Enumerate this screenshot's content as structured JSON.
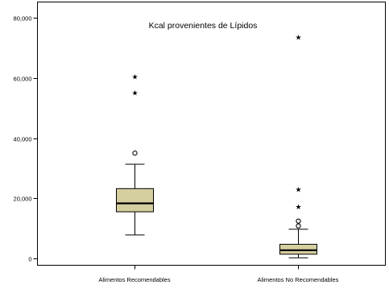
{
  "chart_data": {
    "type": "boxplot",
    "title": "Kcal provenientes de Lípidos",
    "xlabel": "",
    "ylabel": "",
    "ylim": [
      -2000,
      82000
    ],
    "yticks": [
      0,
      20000,
      40000,
      60000,
      80000
    ],
    "ytick_labels": [
      "0",
      "20,000",
      "40,000",
      "60,000",
      "80,000"
    ],
    "grid": false,
    "box_fill": "#D5CFA0",
    "categories": [
      "Alimentos Recomendables",
      "Alimentos No Recomendables"
    ],
    "boxes": [
      {
        "category": "Alimentos Recomendables",
        "whisker_low": 7800,
        "q1": 15500,
        "median": 18300,
        "q3": 23200,
        "whisker_high": 31300,
        "outliers": [
          35000
        ],
        "extremes": [
          55300,
          60600
        ]
      },
      {
        "category": "Alimentos No Recomendables",
        "whisker_low": 200,
        "q1": 1400,
        "median": 2700,
        "q3": 4700,
        "whisker_high": 9700,
        "outliers": [
          10800,
          12400
        ],
        "extremes": [
          17400,
          23200,
          73700
        ]
      }
    ]
  }
}
